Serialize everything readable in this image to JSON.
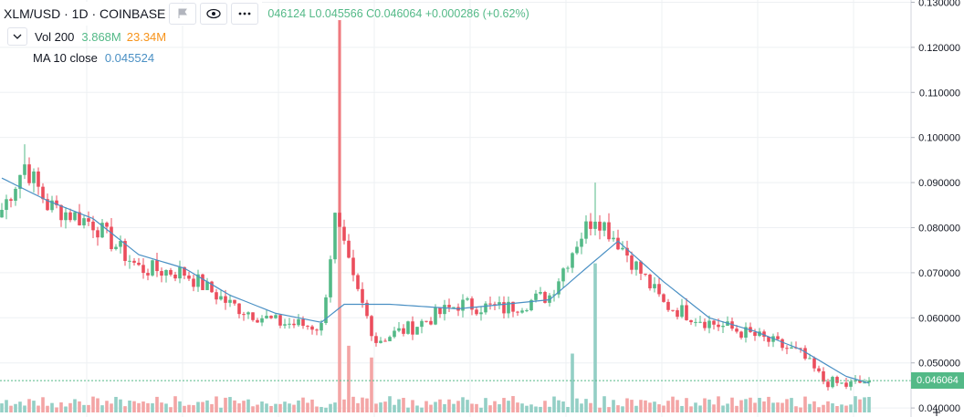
{
  "header": {
    "symbol_title": "XLM/USD · 1D · COINBASE",
    "ohlc_text": "046124  L0.045566  C0.046064  +0.000286 (+0.62%)"
  },
  "indicators": {
    "volume": {
      "label": "Vol 200",
      "value1": "3.868M",
      "value2": "23.34M"
    },
    "ma": {
      "label": "MA 10 close",
      "value": "0.045524"
    }
  },
  "colors": {
    "up": "#53b987",
    "down": "#eb4d5c",
    "vol_up": "#93cfc5",
    "vol_down": "#f3a5a5",
    "ma": "#4a90c4",
    "last_price": "#53b987",
    "grid": "#eef0f3"
  },
  "price_tag": "0.046064",
  "icons": [
    "flag-icon",
    "eye-icon",
    "more-icon",
    "chevron-down-icon"
  ],
  "chart_data": {
    "type": "candlestick",
    "title": "XLM/USD · 1D · COINBASE",
    "ylim": [
      0.038,
      0.1305
    ],
    "y_ticks": [
      "0.130000",
      "0.120000",
      "0.110000",
      "0.100000",
      "0.090000",
      "0.080000",
      "0.070000",
      "0.060000",
      "0.050000",
      "0.040000"
    ],
    "grid": true,
    "last_price": 0.046064,
    "approx_key_values": {
      "start_close": 0.084,
      "early_high": 0.0985,
      "spike_high": 0.126,
      "second_high": 0.09,
      "end_close": 0.046064
    },
    "close_anchors": [
      [
        0,
        0.084
      ],
      [
        5,
        0.094
      ],
      [
        10,
        0.085
      ],
      [
        20,
        0.081
      ],
      [
        30,
        0.071
      ],
      [
        40,
        0.07
      ],
      [
        50,
        0.063
      ],
      [
        60,
        0.059
      ],
      [
        70,
        0.058
      ],
      [
        73,
        0.082
      ],
      [
        77,
        0.068
      ],
      [
        82,
        0.055
      ],
      [
        90,
        0.058
      ],
      [
        100,
        0.063
      ],
      [
        110,
        0.062
      ],
      [
        120,
        0.065
      ],
      [
        126,
        0.077
      ],
      [
        130,
        0.083
      ],
      [
        135,
        0.077
      ],
      [
        145,
        0.063
      ],
      [
        155,
        0.059
      ],
      [
        165,
        0.056
      ],
      [
        175,
        0.052
      ],
      [
        180,
        0.046
      ],
      [
        185,
        0.045
      ],
      [
        190,
        0.046
      ]
    ],
    "ma_anchors": [
      [
        0,
        0.091
      ],
      [
        10,
        0.086
      ],
      [
        20,
        0.082
      ],
      [
        30,
        0.074
      ],
      [
        40,
        0.071
      ],
      [
        50,
        0.065
      ],
      [
        60,
        0.061
      ],
      [
        70,
        0.059
      ],
      [
        75,
        0.063
      ],
      [
        85,
        0.063
      ],
      [
        100,
        0.062
      ],
      [
        120,
        0.064
      ],
      [
        128,
        0.071
      ],
      [
        135,
        0.077
      ],
      [
        145,
        0.068
      ],
      [
        155,
        0.06
      ],
      [
        165,
        0.057
      ],
      [
        175,
        0.053
      ],
      [
        185,
        0.047
      ],
      [
        190,
        0.0455
      ]
    ],
    "volume_spikes": [
      [
        74,
        1.0
      ],
      [
        76,
        0.17
      ],
      [
        81,
        0.14
      ],
      [
        125,
        0.15
      ],
      [
        130,
        0.38
      ]
    ]
  }
}
